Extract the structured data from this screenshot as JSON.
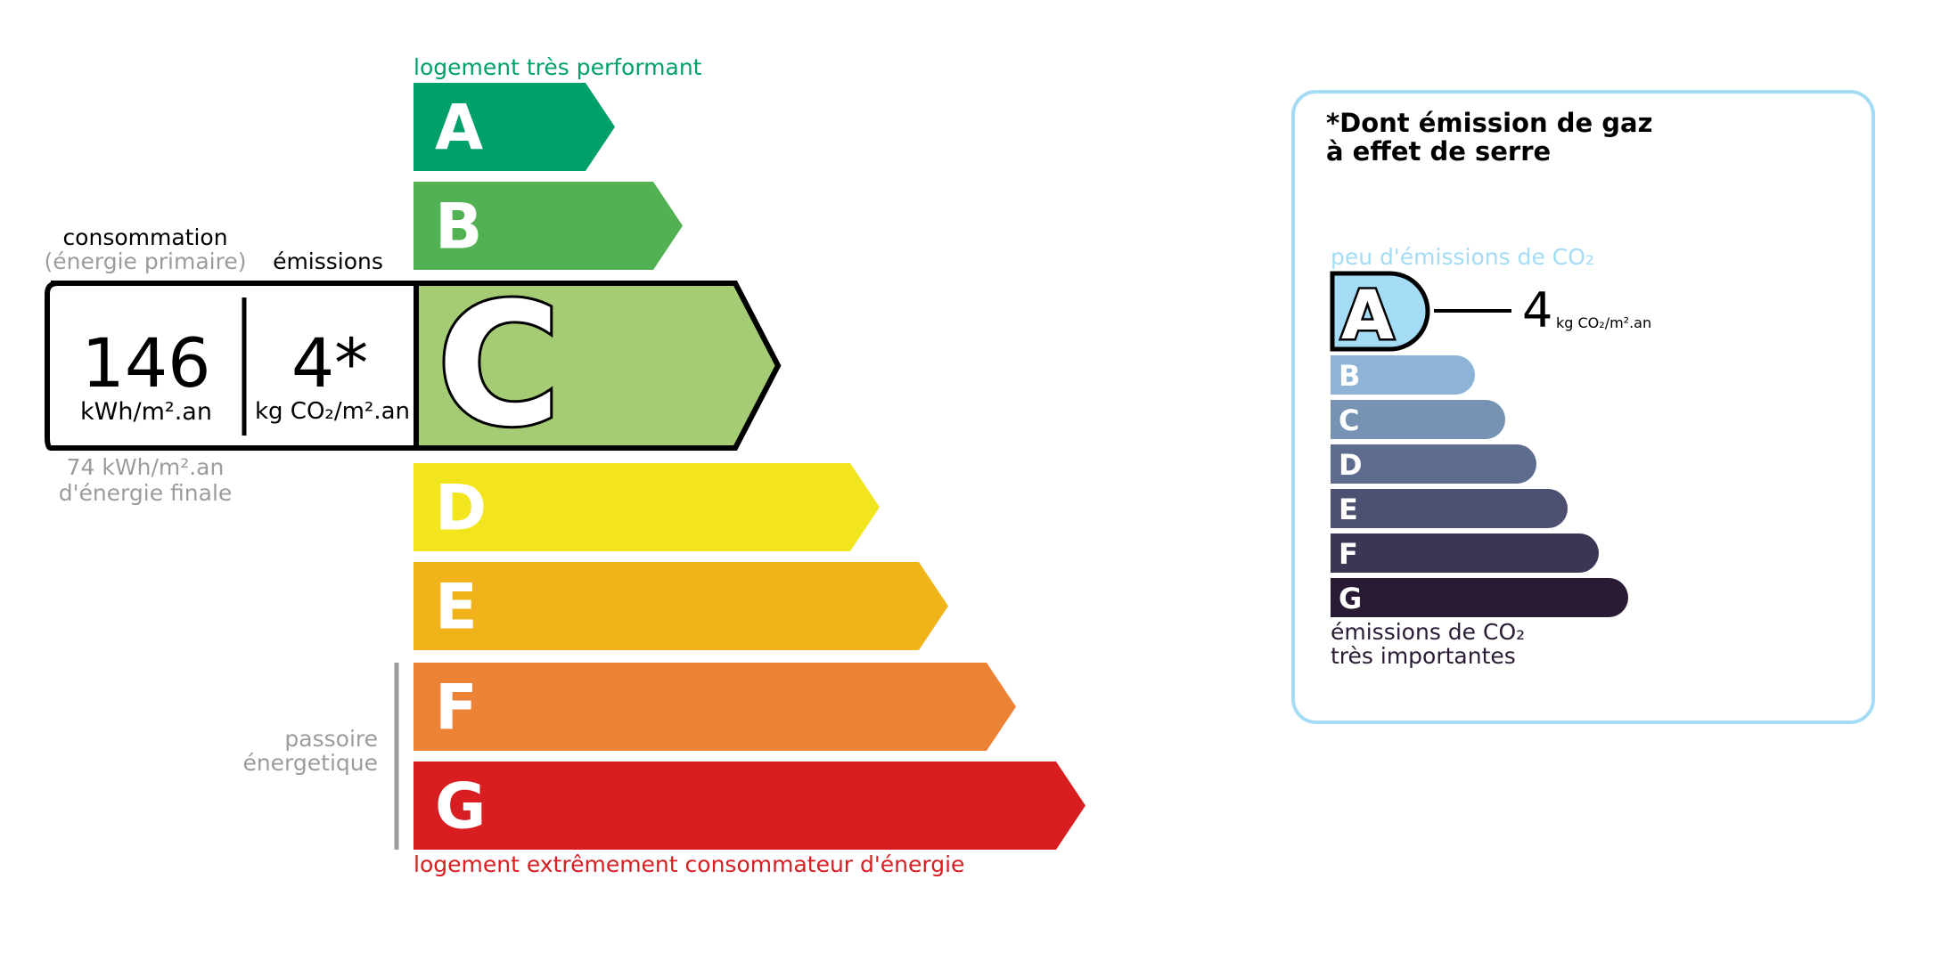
{
  "energy": {
    "top_label": "logement très performant",
    "bottom_label": "logement extrêmement consommateur d'énergie",
    "passoire_line1": "passoire",
    "passoire_line2": "énergetique",
    "classes": [
      {
        "letter": "A",
        "color": "#00a06c"
      },
      {
        "letter": "B",
        "color": "#52b153"
      },
      {
        "letter": "C",
        "color": "#a5cc74"
      },
      {
        "letter": "D",
        "color": "#f2e51e"
      },
      {
        "letter": "E",
        "color": "#f0b41a"
      },
      {
        "letter": "F",
        "color": "#eb8235"
      },
      {
        "letter": "G",
        "color": "#d81e20"
      }
    ],
    "current_class": "C",
    "consumption_title": "consommation",
    "consumption_subtitle": "(énergie primaire)",
    "emissions_title": "émissions",
    "consumption_value": "146",
    "consumption_unit": "kWh/m².an",
    "emissions_value": "4*",
    "emissions_unit": "kg CO₂/m².an",
    "final_energy_line1": "74 kWh/m².an",
    "final_energy_line2": "d'énergie finale",
    "top_label_color": "#00a06c",
    "bottom_label_color": "#d81e20"
  },
  "ges": {
    "title_line1": "*Dont émission de gaz",
    "title_line2": "à effet de serre",
    "top_label": "peu d'émissions de CO₂",
    "bottom_line1": "émissions de CO₂",
    "bottom_line2": "très importantes",
    "current_class": "A",
    "value": "4",
    "unit": "kg CO₂/m².an",
    "border_color": "#a4dbf5",
    "classes": [
      {
        "letter": "A",
        "color": "#a4dbf5"
      },
      {
        "letter": "B",
        "color": "#8db3d6"
      },
      {
        "letter": "C",
        "color": "#7693b4"
      },
      {
        "letter": "D",
        "color": "#5e6c8f"
      },
      {
        "letter": "E",
        "color": "#4d5071"
      },
      {
        "letter": "F",
        "color": "#3a3654"
      },
      {
        "letter": "G",
        "color": "#2a1b35"
      }
    ]
  }
}
